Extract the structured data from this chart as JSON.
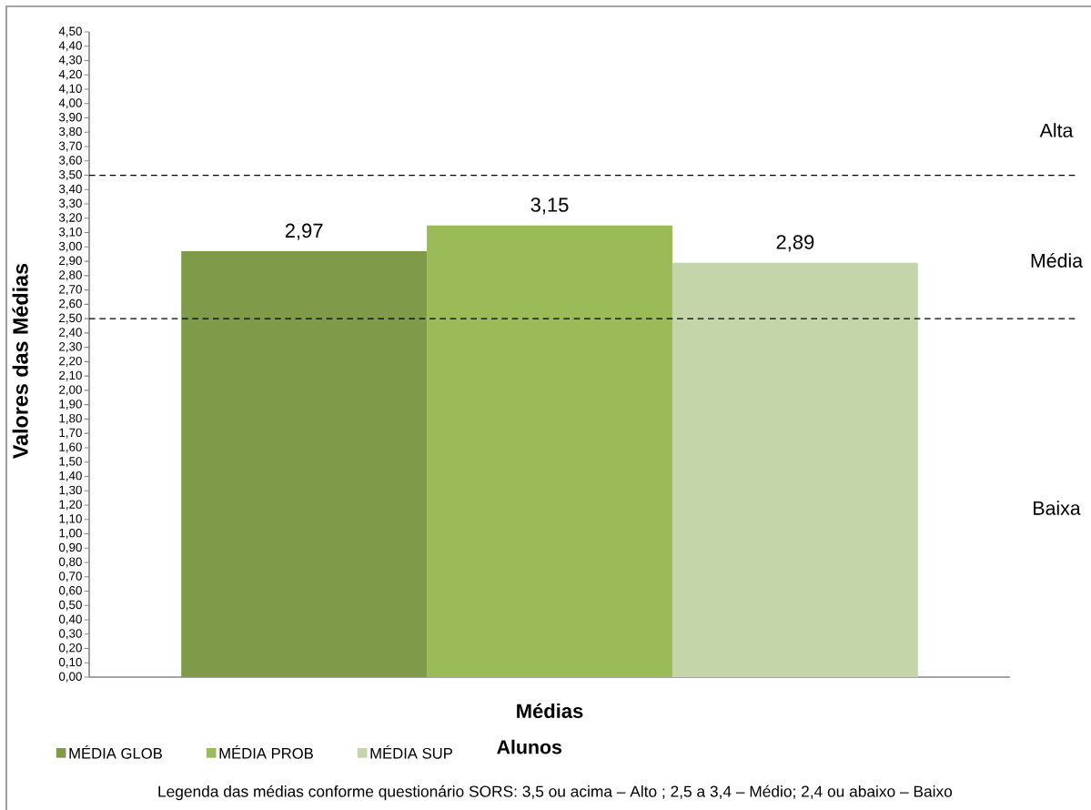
{
  "chart_data": {
    "type": "bar",
    "categories": [
      null
    ],
    "series": [
      {
        "name": "MÉDIA GLOB",
        "color": "#7f9b49",
        "values": [
          2.97
        ],
        "value_labels": [
          "2,97"
        ]
      },
      {
        "name": "MÉDIA PROB",
        "color": "#9bbb59",
        "values": [
          3.15
        ],
        "value_labels": [
          "3,15"
        ]
      },
      {
        "name": "MÉDIA SUP",
        "color": "#c4d6a9",
        "values": [
          2.89
        ],
        "value_labels": [
          "2,89"
        ]
      }
    ],
    "xlabel": "Médias",
    "ylabel": "Valores das Médias",
    "legend_title": "Alunos",
    "legend": "bottom left",
    "tick_labels": "y",
    "ylim": [
      0,
      4.5
    ],
    "yticks": [
      {
        "value": 0,
        "label": "0,00"
      },
      {
        "value": 0.1,
        "label": "0,10"
      },
      {
        "value": 0.2,
        "label": "0,20"
      },
      {
        "value": 0.3,
        "label": "0,30"
      },
      {
        "value": 0.4,
        "label": "0,40"
      },
      {
        "value": 0.5,
        "label": "0,50"
      },
      {
        "value": 0.6,
        "label": "0,60"
      },
      {
        "value": 0.7,
        "label": "0,70"
      },
      {
        "value": 0.8,
        "label": "0,80"
      },
      {
        "value": 0.9,
        "label": "0,90"
      },
      {
        "value": 1.0,
        "label": "1,00"
      },
      {
        "value": 1.1,
        "label": "1,10"
      },
      {
        "value": 1.2,
        "label": "1,20"
      },
      {
        "value": 1.3,
        "label": "1,30"
      },
      {
        "value": 1.4,
        "label": "1,40"
      },
      {
        "value": 1.5,
        "label": "1,50"
      },
      {
        "value": 1.6,
        "label": "1,60"
      },
      {
        "value": 1.7,
        "label": "1,70"
      },
      {
        "value": 1.8,
        "label": "1,80"
      },
      {
        "value": 1.9,
        "label": "1,90"
      },
      {
        "value": 2.0,
        "label": "2,00"
      },
      {
        "value": 2.1,
        "label": "2,10"
      },
      {
        "value": 2.2,
        "label": "2,20"
      },
      {
        "value": 2.3,
        "label": "2,30"
      },
      {
        "value": 2.4,
        "label": "2,40"
      },
      {
        "value": 2.5,
        "label": "2,50"
      },
      {
        "value": 2.6,
        "label": "2,60"
      },
      {
        "value": 2.7,
        "label": "2,70"
      },
      {
        "value": 2.8,
        "label": "2,80"
      },
      {
        "value": 2.9,
        "label": "2,90"
      },
      {
        "value": 3.0,
        "label": "3,00"
      },
      {
        "value": 3.1,
        "label": "3,10"
      },
      {
        "value": 3.2,
        "label": "3,20"
      },
      {
        "value": 3.3,
        "label": "3,30"
      },
      {
        "value": 3.4,
        "label": "3,40"
      },
      {
        "value": 3.5,
        "label": "3,50"
      },
      {
        "value": 3.6,
        "label": "3,60"
      },
      {
        "value": 3.7,
        "label": "3,70"
      },
      {
        "value": 3.8,
        "label": "3,80"
      },
      {
        "value": 3.9,
        "label": "3,90"
      },
      {
        "value": 4.0,
        "label": "4,00"
      },
      {
        "value": 4.1,
        "label": "4,10"
      },
      {
        "value": 4.2,
        "label": "4,20"
      },
      {
        "value": 4.3,
        "label": "4,30"
      },
      {
        "value": 4.4,
        "label": "4,40"
      },
      {
        "value": 4.5,
        "label": "4,50"
      }
    ],
    "ref_lines": [
      {
        "axis": "y",
        "value": 3.5,
        "color": "#000000",
        "line_style": "dashed"
      },
      {
        "axis": "y",
        "value": 2.5,
        "color": "#000000",
        "line_style": "dashed"
      }
    ],
    "annotations": [
      "Alta",
      "Média",
      "Baixa",
      "Legenda das médias conforme questionário SORS: 3,5 ou acima – Alto ; 2,5 a 3,4 – Médio; 2,4 ou abaixo – Baixo"
    ]
  }
}
